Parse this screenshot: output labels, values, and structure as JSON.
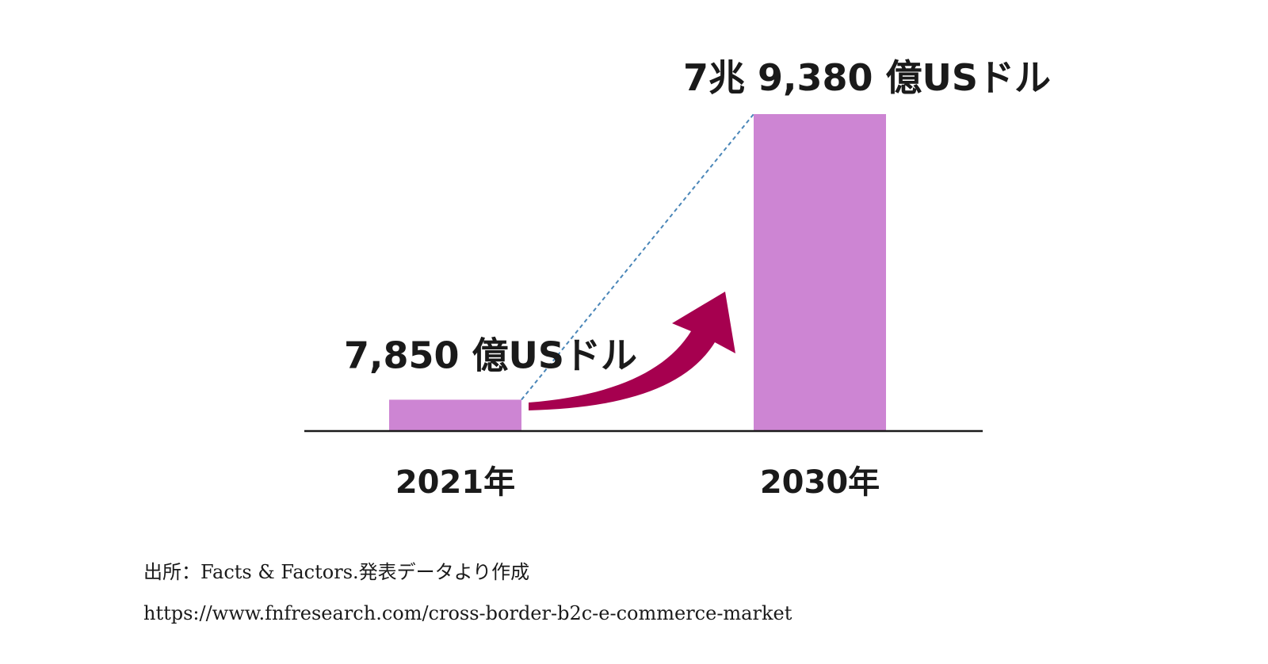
{
  "chart_data": {
    "type": "bar",
    "categories": [
      "2021年",
      "2030年"
    ],
    "values": [
      7850,
      79380
    ],
    "unit": "億USドル",
    "value_labels": [
      "7,850 億USドル",
      "7兆 9,380 億USドル"
    ],
    "title": "",
    "xlabel": "",
    "ylabel": "",
    "ylim": [
      0,
      79380
    ],
    "grid": false,
    "legend": "none",
    "colors": {
      "bar": "#cd85d3",
      "arrow": "#a6004f",
      "connector": "#4a86b8",
      "baseline": "#1a1a1a"
    }
  },
  "source": {
    "line1": "出所：Facts & Factors.発表データより作成",
    "line2": "https://www.fnfresearch.com/cross-border-b2c-e-commerce-market"
  }
}
